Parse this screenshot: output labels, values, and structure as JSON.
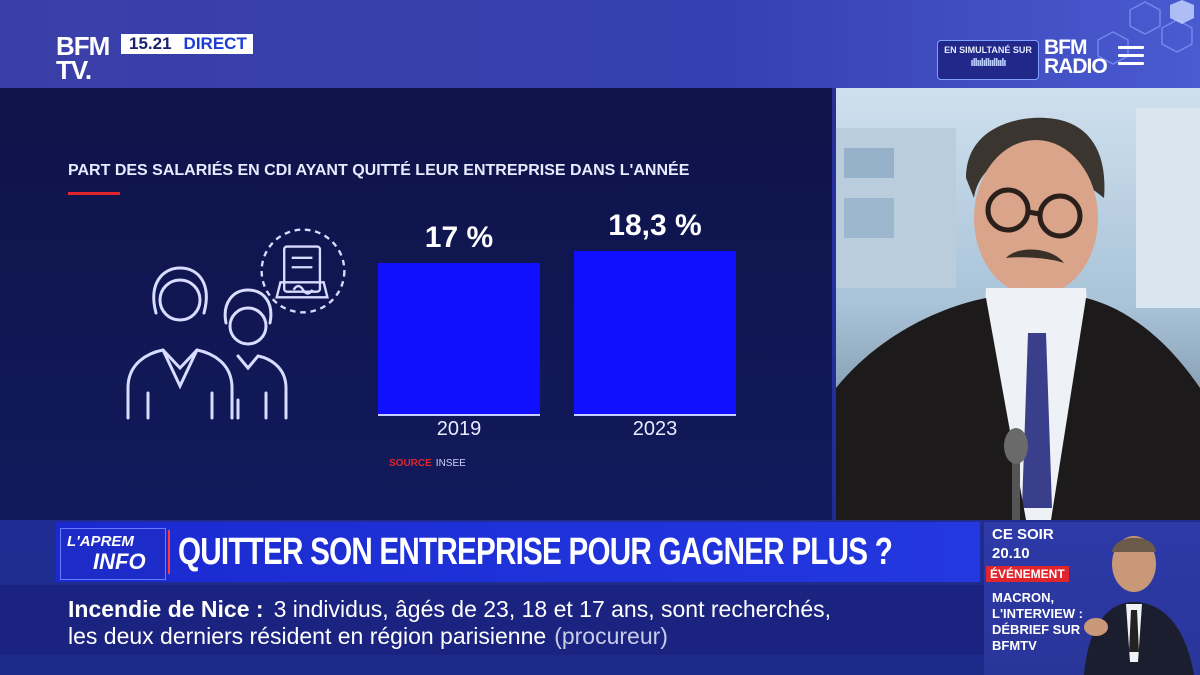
{
  "channel": {
    "logo": "BFM TV.",
    "time": "15.21",
    "live_label": "DIRECT",
    "simulcast_label": "EN SIMULTANÉ SUR",
    "radio_logo": "BFM RADIO"
  },
  "graphic": {
    "title": "PART DES SALARIÉS EN CDI AYANT QUITTÉ LEUR ENTREPRISE DANS L'ANNÉE",
    "source_label": "SOURCE",
    "source_value": "INSEE",
    "bar_labels": [
      "17 %",
      "18,3 %"
    ]
  },
  "chart_data": {
    "type": "bar",
    "title": "PART DES SALARIÉS EN CDI AYANT QUITTÉ LEUR ENTREPRISE DANS L'ANNÉE",
    "categories": [
      "2019",
      "2023"
    ],
    "values": [
      17,
      18.3
    ],
    "xlabel": "",
    "ylabel": "",
    "ylim": [
      0,
      18.3
    ],
    "colors": {
      "bar": "#1010ff"
    }
  },
  "headline": {
    "show_line1": "L'APREM",
    "show_line2": "INFO",
    "text": "QUITTER SON ENTREPRISE POUR GAGNER PLUS ?"
  },
  "ticker": {
    "topic": "Incendie de Nice :",
    "line1": "3 individus, âgés de 23, 18 et 17 ans, sont recherchés,",
    "line2": "les deux derniers résident en région parisienne",
    "attribution": "(procureur)"
  },
  "promo": {
    "line1": "CE SOIR",
    "time": "20.10",
    "badge": "ÉVÉNEMENT",
    "title1": "MACRON,",
    "title2": "L'INTERVIEW :",
    "title3": "DÉBRIEF SUR",
    "title4": "BFMTV"
  },
  "icons": [
    "people-icon",
    "contract-document-icon",
    "menu-icon",
    "audio-wave-icon"
  ]
}
